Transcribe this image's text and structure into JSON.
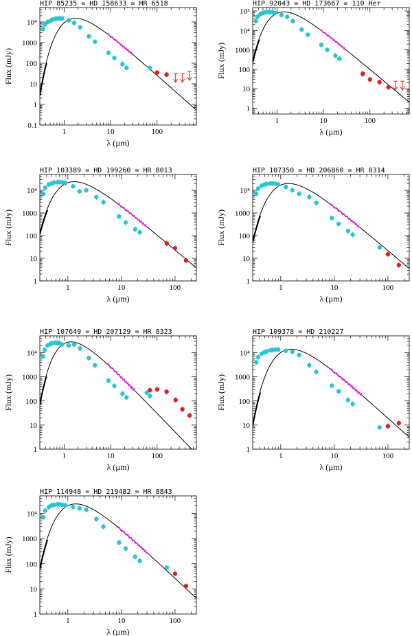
{
  "chart_data": [
    {
      "type": "scatter",
      "title": "HIP 85235 = HD 158633 = HR 6518",
      "xlabel": "λ (µm)",
      "ylabel": "Flux (mJy)",
      "xscale": "log",
      "yscale": "log",
      "xlim": [
        0.3,
        700
      ],
      "ylim": [
        0.1,
        50000
      ],
      "xticks": [
        1,
        10,
        100
      ],
      "xtick_labels": [
        "1",
        "10",
        "100"
      ],
      "yticks": [
        0.1,
        1,
        10,
        100,
        1000,
        10000
      ],
      "ytick_labels": [
        "0.1",
        "1",
        "10",
        "100",
        "1000",
        "10⁴"
      ],
      "model_peak": {
        "lambda": 1.0,
        "flux": 15000
      },
      "spectrum": {
        "from": 8,
        "to": 30
      },
      "series": [
        {
          "name": "optical/near-IR photometry",
          "color": "#29c5d3",
          "x": [
            0.35,
            0.38,
            0.44,
            0.5,
            0.55,
            0.64,
            0.7,
            0.79,
            0.9,
            1.25,
            1.65,
            2.2,
            3.4,
            4.6,
            9,
            12,
            18,
            22
          ],
          "y": [
            4500,
            7500,
            10000,
            11000,
            13000,
            14000,
            14500,
            15000,
            15000,
            12000,
            9000,
            5500,
            2000,
            1100,
            320,
            180,
            90,
            60
          ]
        },
        {
          "name": "far-IR detections",
          "color": "#29c5d3",
          "x": [
            70
          ],
          "y": [
            60
          ]
        },
        {
          "name": "far-IR photometry",
          "color": "#e02020",
          "x": [
            100,
            160
          ],
          "y": [
            35,
            28
          ]
        },
        {
          "name": "upper limits",
          "color": "#e02020",
          "x": [
            250,
            350,
            500
          ],
          "y": [
            20,
            20,
            25
          ],
          "upper_limit": true
        }
      ]
    },
    {
      "type": "scatter",
      "title": "HIP 92043 = HD 173667 = 110 Her",
      "xlabel": "λ (µm)",
      "ylabel": "Flux (mJy)",
      "xscale": "log",
      "yscale": "log",
      "xlim": [
        0.3,
        700
      ],
      "ylim": [
        0.5,
        150000
      ],
      "xticks": [
        1,
        10,
        100
      ],
      "xtick_labels": [
        "1",
        "10",
        "100"
      ],
      "yticks": [
        1,
        10,
        100,
        1000,
        10000,
        100000
      ],
      "ytick_labels": [
        "1",
        "10",
        "100",
        "1000",
        "10⁴",
        "10⁵"
      ],
      "model_peak": {
        "lambda": 0.8,
        "flux": 90000
      },
      "spectrum": {
        "from": 8,
        "to": 30
      },
      "series": [
        {
          "name": "optical/near-IR photometry",
          "color": "#29c5d3",
          "x": [
            0.35,
            0.38,
            0.44,
            0.5,
            0.55,
            0.64,
            0.7,
            0.79,
            0.9,
            1.25,
            1.65,
            2.2,
            3.4,
            4.6,
            9,
            12,
            18,
            22
          ],
          "y": [
            30000,
            50000,
            70000,
            80000,
            85000,
            88000,
            88000,
            87000,
            80000,
            62000,
            50000,
            30000,
            11000,
            6000,
            1800,
            1000,
            500,
            350
          ]
        },
        {
          "name": "far-IR detections",
          "color": "#29c5d3",
          "x": [
            70
          ],
          "y": [
            55
          ]
        },
        {
          "name": "far-IR photometry",
          "color": "#e02020",
          "x": [
            70,
            100,
            160,
            250
          ],
          "y": [
            60,
            30,
            22,
            12
          ]
        },
        {
          "name": "upper limits",
          "color": "#e02020",
          "x": [
            350,
            500
          ],
          "y": [
            15,
            15
          ],
          "upper_limit": true
        }
      ]
    },
    {
      "type": "scatter",
      "title": "HIP 103389 = HD 199260 = HR 8013",
      "xlabel": "λ (µm)",
      "ylabel": "Flux (mJy)",
      "xscale": "log",
      "yscale": "log",
      "xlim": [
        0.3,
        250
      ],
      "ylim": [
        1,
        50000
      ],
      "xticks": [
        1,
        10,
        100
      ],
      "xtick_labels": [
        "1",
        "10",
        "100"
      ],
      "yticks": [
        1,
        10,
        100,
        1000,
        10000
      ],
      "ytick_labels": [
        "1",
        "10",
        "100",
        "1000",
        "10⁴"
      ],
      "model_peak": {
        "lambda": 0.75,
        "flux": 24000
      },
      "spectrum": {
        "from": 8,
        "to": 30
      },
      "series": [
        {
          "name": "optical/near-IR photometry",
          "color": "#29c5d3",
          "x": [
            0.35,
            0.38,
            0.44,
            0.5,
            0.55,
            0.64,
            0.7,
            0.79,
            0.9,
            1.25,
            1.65,
            2.2,
            3.4,
            4.6,
            9,
            12,
            18,
            22
          ],
          "y": [
            7000,
            13000,
            18000,
            20000,
            22000,
            23000,
            23000,
            22500,
            21000,
            15000,
            9000,
            10000,
            5000,
            3000,
            700,
            380,
            190,
            140
          ]
        },
        {
          "name": "far-IR detections",
          "color": "#29c5d3",
          "x": [
            70
          ],
          "y": [
            45
          ]
        },
        {
          "name": "far-IR photometry",
          "color": "#e02020",
          "x": [
            70,
            100,
            160
          ],
          "y": [
            45,
            28,
            8
          ]
        }
      ]
    },
    {
      "type": "scatter",
      "title": "HIP 107350 = HD 206860 = HR 8314",
      "xlabel": "λ (µm)",
      "ylabel": "Flux (mJy)",
      "xscale": "log",
      "yscale": "log",
      "xlim": [
        0.3,
        250
      ],
      "ylim": [
        1,
        50000
      ],
      "xticks": [
        1,
        10,
        100
      ],
      "xtick_labels": [
        "1",
        "10",
        "100"
      ],
      "yticks": [
        1,
        10,
        100,
        1000,
        10000
      ],
      "ytick_labels": [
        "1",
        "10",
        "100",
        "1000",
        "10⁴"
      ],
      "model_peak": {
        "lambda": 0.8,
        "flux": 20000
      },
      "spectrum": {
        "from": 8,
        "to": 30
      },
      "series": [
        {
          "name": "optical/near-IR photometry",
          "color": "#29c5d3",
          "x": [
            0.35,
            0.38,
            0.44,
            0.5,
            0.55,
            0.64,
            0.7,
            0.79,
            0.9,
            1.25,
            1.65,
            2.2,
            3.4,
            4.6,
            9,
            12,
            18,
            22
          ],
          "y": [
            7000,
            12000,
            16000,
            18000,
            19000,
            20000,
            20000,
            19500,
            18000,
            14000,
            10000,
            7000,
            5000,
            2800,
            600,
            330,
            160,
            110
          ]
        },
        {
          "name": "far-IR detections",
          "color": "#29c5d3",
          "x": [
            70
          ],
          "y": [
            30
          ]
        },
        {
          "name": "far-IR photometry",
          "color": "#e02020",
          "x": [
            100,
            160
          ],
          "y": [
            15,
            5
          ]
        }
      ]
    },
    {
      "type": "scatter",
      "title": "HIP 107649 = HD 207129 = HR 8323",
      "xlabel": "λ (µm)",
      "ylabel": "Flux (mJy)",
      "xscale": "log",
      "yscale": "log",
      "xlim": [
        0.3,
        700
      ],
      "ylim": [
        1,
        50000
      ],
      "xticks": [
        1,
        10,
        100
      ],
      "xtick_labels": [
        "1",
        "10",
        "100"
      ],
      "yticks": [
        1,
        10,
        100,
        1000,
        10000
      ],
      "ytick_labels": [
        "1",
        "10",
        "100",
        "1000",
        "10⁴"
      ],
      "model_peak": {
        "lambda": 0.8,
        "flux": 28000
      },
      "spectrum": {
        "from": 8,
        "to": 33
      },
      "series": [
        {
          "name": "optical/near-IR photometry",
          "color": "#29c5d3",
          "x": [
            0.35,
            0.38,
            0.44,
            0.5,
            0.55,
            0.64,
            0.7,
            0.79,
            0.9,
            1.25,
            1.65,
            2.2,
            3.4,
            4.6,
            9,
            12,
            18,
            22
          ],
          "y": [
            7000,
            13000,
            20000,
            23000,
            25000,
            26000,
            26000,
            25000,
            22000,
            20000,
            22000,
            15000,
            6000,
            3000,
            700,
            420,
            200,
            140
          ]
        },
        {
          "name": "far-IR detections",
          "color": "#29c5d3",
          "x": [
            60,
            70
          ],
          "y": [
            220,
            160
          ]
        },
        {
          "name": "far-IR photometry",
          "color": "#e02020",
          "x": [
            70,
            100,
            160,
            250,
            350,
            500
          ],
          "y": [
            280,
            300,
            240,
            110,
            45,
            25
          ]
        }
      ]
    },
    {
      "type": "scatter",
      "title": "HIP 109378 = HD 210227",
      "xlabel": "λ (µm)",
      "ylabel": "Flux (mJy)",
      "xscale": "log",
      "yscale": "log",
      "xlim": [
        0.3,
        250
      ],
      "ylim": [
        1,
        50000
      ],
      "xticks": [
        1,
        10,
        100
      ],
      "xtick_labels": [
        "1",
        "10",
        "100"
      ],
      "yticks": [
        1,
        10,
        100,
        1000,
        10000
      ],
      "ytick_labels": [
        "1",
        "10",
        "100",
        "1000",
        "10⁴"
      ],
      "model_peak": {
        "lambda": 0.9,
        "flux": 14000
      },
      "spectrum": {
        "from": 8,
        "to": 33,
        "note": "noisy tail dropping near 30 µm"
      },
      "series": [
        {
          "name": "optical/near-IR photometry",
          "color": "#29c5d3",
          "x": [
            0.35,
            0.38,
            0.44,
            0.5,
            0.55,
            0.64,
            0.7,
            0.79,
            0.9,
            1.25,
            1.65,
            2.2,
            3.4,
            4.6,
            9,
            12,
            18,
            22
          ],
          "y": [
            4000,
            6500,
            9000,
            10500,
            11500,
            12500,
            13000,
            13500,
            13500,
            12000,
            11000,
            8000,
            3000,
            1600,
            430,
            250,
            110,
            75
          ]
        },
        {
          "name": "far-IR detections",
          "color": "#29c5d3",
          "x": [
            70
          ],
          "y": [
            8
          ]
        },
        {
          "name": "far-IR photometry",
          "color": "#e02020",
          "x": [
            100,
            160
          ],
          "y": [
            9,
            12
          ]
        }
      ]
    },
    {
      "type": "scatter",
      "title": "HIP 114948 = HD 219482 = HR 8843",
      "xlabel": "λ (µm)",
      "ylabel": "Flux (mJy)",
      "xscale": "log",
      "yscale": "log",
      "xlim": [
        0.3,
        250
      ],
      "ylim": [
        1,
        50000
      ],
      "xticks": [
        1,
        10,
        100
      ],
      "xtick_labels": [
        "1",
        "10",
        "100"
      ],
      "yticks": [
        1,
        10,
        100,
        1000,
        10000
      ],
      "ytick_labels": [
        "1",
        "10",
        "100",
        "1000",
        "10⁴"
      ],
      "model_peak": {
        "lambda": 0.8,
        "flux": 24000
      },
      "spectrum": {
        "from": 8,
        "to": 30
      },
      "series": [
        {
          "name": "optical/near-IR photometry",
          "color": "#29c5d3",
          "x": [
            0.35,
            0.38,
            0.44,
            0.5,
            0.55,
            0.64,
            0.7,
            0.79,
            0.9,
            1.25,
            1.65,
            2.2,
            3.4,
            4.6,
            9,
            12,
            18,
            22
          ],
          "y": [
            7000,
            13000,
            18000,
            21000,
            22000,
            23000,
            23000,
            22000,
            21000,
            18000,
            16000,
            14000,
            6000,
            3000,
            700,
            400,
            190,
            130
          ]
        },
        {
          "name": "far-IR detections",
          "color": "#29c5d3",
          "x": [
            70
          ],
          "y": [
            70
          ]
        },
        {
          "name": "far-IR photometry",
          "color": "#e02020",
          "x": [
            100,
            160
          ],
          "y": [
            40,
            13
          ]
        }
      ]
    }
  ]
}
